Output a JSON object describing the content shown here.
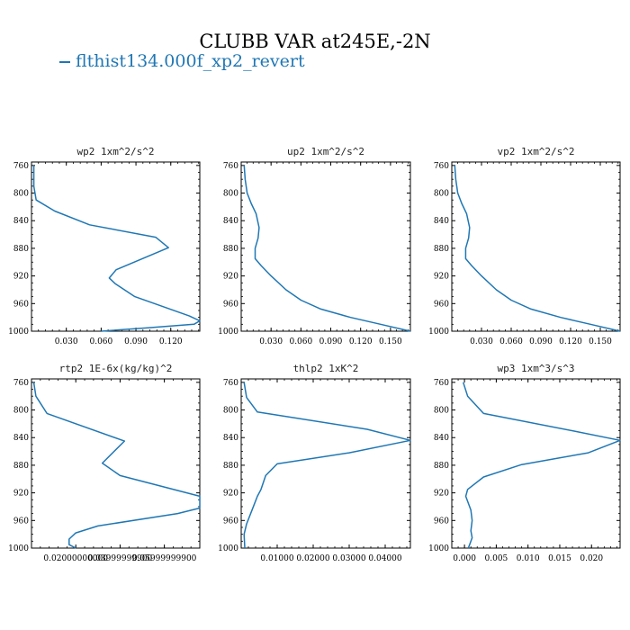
{
  "title": "CLUBB VAR at245E,-2N",
  "legend": {
    "label": "flthist134.000f_xp2_revert",
    "color": "#1f77b4"
  },
  "chart_data": [
    {
      "type": "line",
      "title": "wp2  1xm^2/s^2",
      "xlim": [
        0,
        0.145
      ],
      "ylim": [
        1000,
        755
      ],
      "x_ticks": [
        0.03,
        0.06,
        0.09,
        0.12
      ],
      "x_tick_labels": [
        "0.030",
        "0.060",
        "0.090",
        "0.120"
      ],
      "y_ticks": [
        760,
        800,
        840,
        880,
        920,
        960,
        1000
      ],
      "series": [
        {
          "x": [
            0.002,
            0.002,
            0.004,
            0.02,
            0.05,
            0.107,
            0.118,
            0.073,
            0.067,
            0.072,
            0.089,
            0.136,
            0.145,
            0.14,
            0.1,
            0.06
          ],
          "y": [
            760,
            790,
            810,
            826,
            846,
            864,
            879,
            911,
            923,
            931,
            950,
            978,
            985,
            990,
            995,
            1000
          ]
        }
      ]
    },
    {
      "type": "line",
      "title": "up2  1xm^2/s^2",
      "xlim": [
        0,
        0.17
      ],
      "ylim": [
        1000,
        755
      ],
      "x_ticks": [
        0.03,
        0.06,
        0.09,
        0.12,
        0.15
      ],
      "x_tick_labels": [
        "0.030",
        "0.060",
        "0.090",
        "0.120",
        "0.150"
      ],
      "y_ticks": [
        760,
        800,
        840,
        880,
        920,
        960,
        1000
      ],
      "series": [
        {
          "x": [
            0.003,
            0.004,
            0.006,
            0.01,
            0.015,
            0.018,
            0.017,
            0.014,
            0.014,
            0.02,
            0.03,
            0.045,
            0.06,
            0.08,
            0.11,
            0.14,
            0.17
          ],
          "y": [
            760,
            780,
            800,
            815,
            830,
            850,
            865,
            880,
            895,
            905,
            920,
            940,
            955,
            968,
            980,
            990,
            1000
          ]
        }
      ]
    },
    {
      "type": "line",
      "title": "vp2  1xm^2/s^2",
      "xlim": [
        0,
        0.17
      ],
      "ylim": [
        1000,
        755
      ],
      "x_ticks": [
        0.03,
        0.06,
        0.09,
        0.12,
        0.15
      ],
      "x_tick_labels": [
        "0.030",
        "0.060",
        "0.090",
        "0.120",
        "0.150"
      ],
      "y_ticks": [
        760,
        800,
        840,
        880,
        920,
        960,
        1000
      ],
      "series": [
        {
          "x": [
            0.003,
            0.004,
            0.006,
            0.01,
            0.015,
            0.018,
            0.017,
            0.014,
            0.014,
            0.02,
            0.03,
            0.045,
            0.06,
            0.08,
            0.11,
            0.14,
            0.17
          ],
          "y": [
            760,
            780,
            800,
            815,
            830,
            850,
            865,
            880,
            895,
            905,
            920,
            940,
            955,
            968,
            980,
            990,
            1000
          ]
        }
      ]
    },
    {
      "type": "line",
      "title": "rtp2  1E-6x(kg/kg)^2",
      "xlim": [
        0,
        0.076
      ],
      "ylim": [
        1000,
        755
      ],
      "x_ticks": [
        0.02,
        0.04,
        0.06
      ],
      "x_tick_labels": [
        "0.02000000000",
        "0.03999999900",
        "0.05999999900"
      ],
      "y_ticks": [
        760,
        800,
        840,
        880,
        920,
        960,
        1000
      ],
      "series": [
        {
          "x": [
            0.001,
            0.002,
            0.007,
            0.042,
            0.032,
            0.04,
            0.076,
            0.076,
            0.066,
            0.03,
            0.02,
            0.017,
            0.017,
            0.02
          ],
          "y": [
            760,
            780,
            805,
            845,
            877,
            895,
            925,
            942,
            950,
            968,
            978,
            987,
            995,
            1000
          ]
        }
      ]
    },
    {
      "type": "line",
      "title": "thlp2  1xK^2",
      "xlim": [
        0,
        0.047
      ],
      "ylim": [
        1000,
        755
      ],
      "x_ticks": [
        0.01,
        0.02,
        0.03,
        0.04
      ],
      "x_tick_labels": [
        "0.01000",
        "0.02000",
        "0.03000",
        "0.04000"
      ],
      "y_ticks": [
        760,
        800,
        840,
        880,
        920,
        960,
        1000
      ],
      "series": [
        {
          "x": [
            0.0008,
            0.0015,
            0.0045,
            0.035,
            0.047,
            0.03,
            0.01,
            0.0068,
            0.0055,
            0.0045,
            0.003,
            0.0015,
            0.0008,
            0.001
          ],
          "y": [
            760,
            782,
            803,
            828,
            844,
            862,
            878,
            895,
            915,
            925,
            945,
            965,
            980,
            1000
          ]
        }
      ]
    },
    {
      "type": "line",
      "title": "wp3  1xm^3/s^3",
      "xlim": [
        -0.002,
        0.0245
      ],
      "ylim": [
        1000,
        755
      ],
      "x_ticks": [
        0,
        0.005,
        0.01,
        0.015,
        0.02
      ],
      "x_tick_labels": [
        "0.000",
        "0.005",
        "0.010",
        "0.015",
        "0.020"
      ],
      "y_ticks": [
        760,
        800,
        840,
        880,
        920,
        960,
        1000
      ],
      "series": [
        {
          "x": [
            -0.0002,
            0.0005,
            0.003,
            0.017,
            0.0245,
            0.0195,
            0.009,
            0.003,
            0.0005,
            0.0002,
            0.001,
            0.0012,
            0.001,
            0.0012,
            0.0008,
            0.0006
          ],
          "y": [
            760,
            780,
            805,
            830,
            844,
            862,
            879,
            897,
            915,
            925,
            945,
            960,
            975,
            985,
            995,
            1000
          ]
        }
      ]
    }
  ]
}
